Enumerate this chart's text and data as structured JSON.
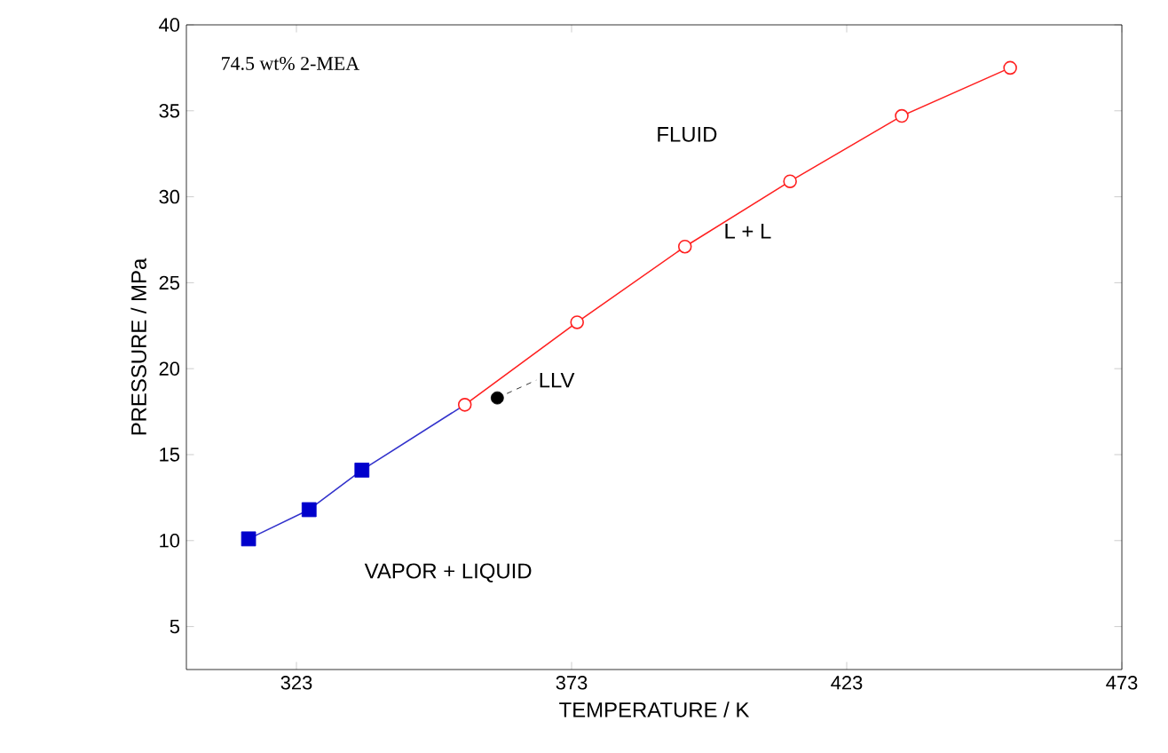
{
  "chart_data": {
    "type": "line",
    "xlabel": "TEMPERATURE / K",
    "ylabel": "PRESSURE / MPa",
    "xlim": [
      303,
      473
    ],
    "xticks": [
      323,
      373,
      423,
      473
    ],
    "ylim": [
      2.5,
      40
    ],
    "yticks": [
      5,
      10,
      15,
      20,
      25,
      30,
      35,
      40
    ],
    "series": [
      {
        "marker": "none",
        "color": "#3333cc",
        "x": [
          314.3,
          325.3,
          334.9,
          353.6
        ],
        "values": [
          10.1,
          11.8,
          14.1,
          17.9
        ]
      },
      {
        "type": "scatter",
        "marker": "square",
        "color": "#0000cc",
        "x": [
          314.3,
          325.3,
          334.9
        ],
        "values": [
          10.1,
          11.8,
          14.1
        ]
      },
      {
        "marker": "circle",
        "color": "#ff2020",
        "x": [
          353.6,
          374,
          393.6,
          412.7,
          433,
          452.7
        ],
        "values": [
          17.9,
          22.7,
          27.1,
          30.9,
          34.7,
          37.5
        ]
      },
      {
        "type": "scatter",
        "marker": "circle",
        "color": "#000000",
        "x": [
          359.5
        ],
        "values": [
          18.3
        ]
      }
    ],
    "annotations": [
      "74.5 wt% 2-MEA",
      "FLUID",
      "L + L",
      {
        "text": "LLV",
        "x": 359.5,
        "y": 18.3
      },
      "VAPOR + LIQUID"
    ],
    "grid": false
  }
}
